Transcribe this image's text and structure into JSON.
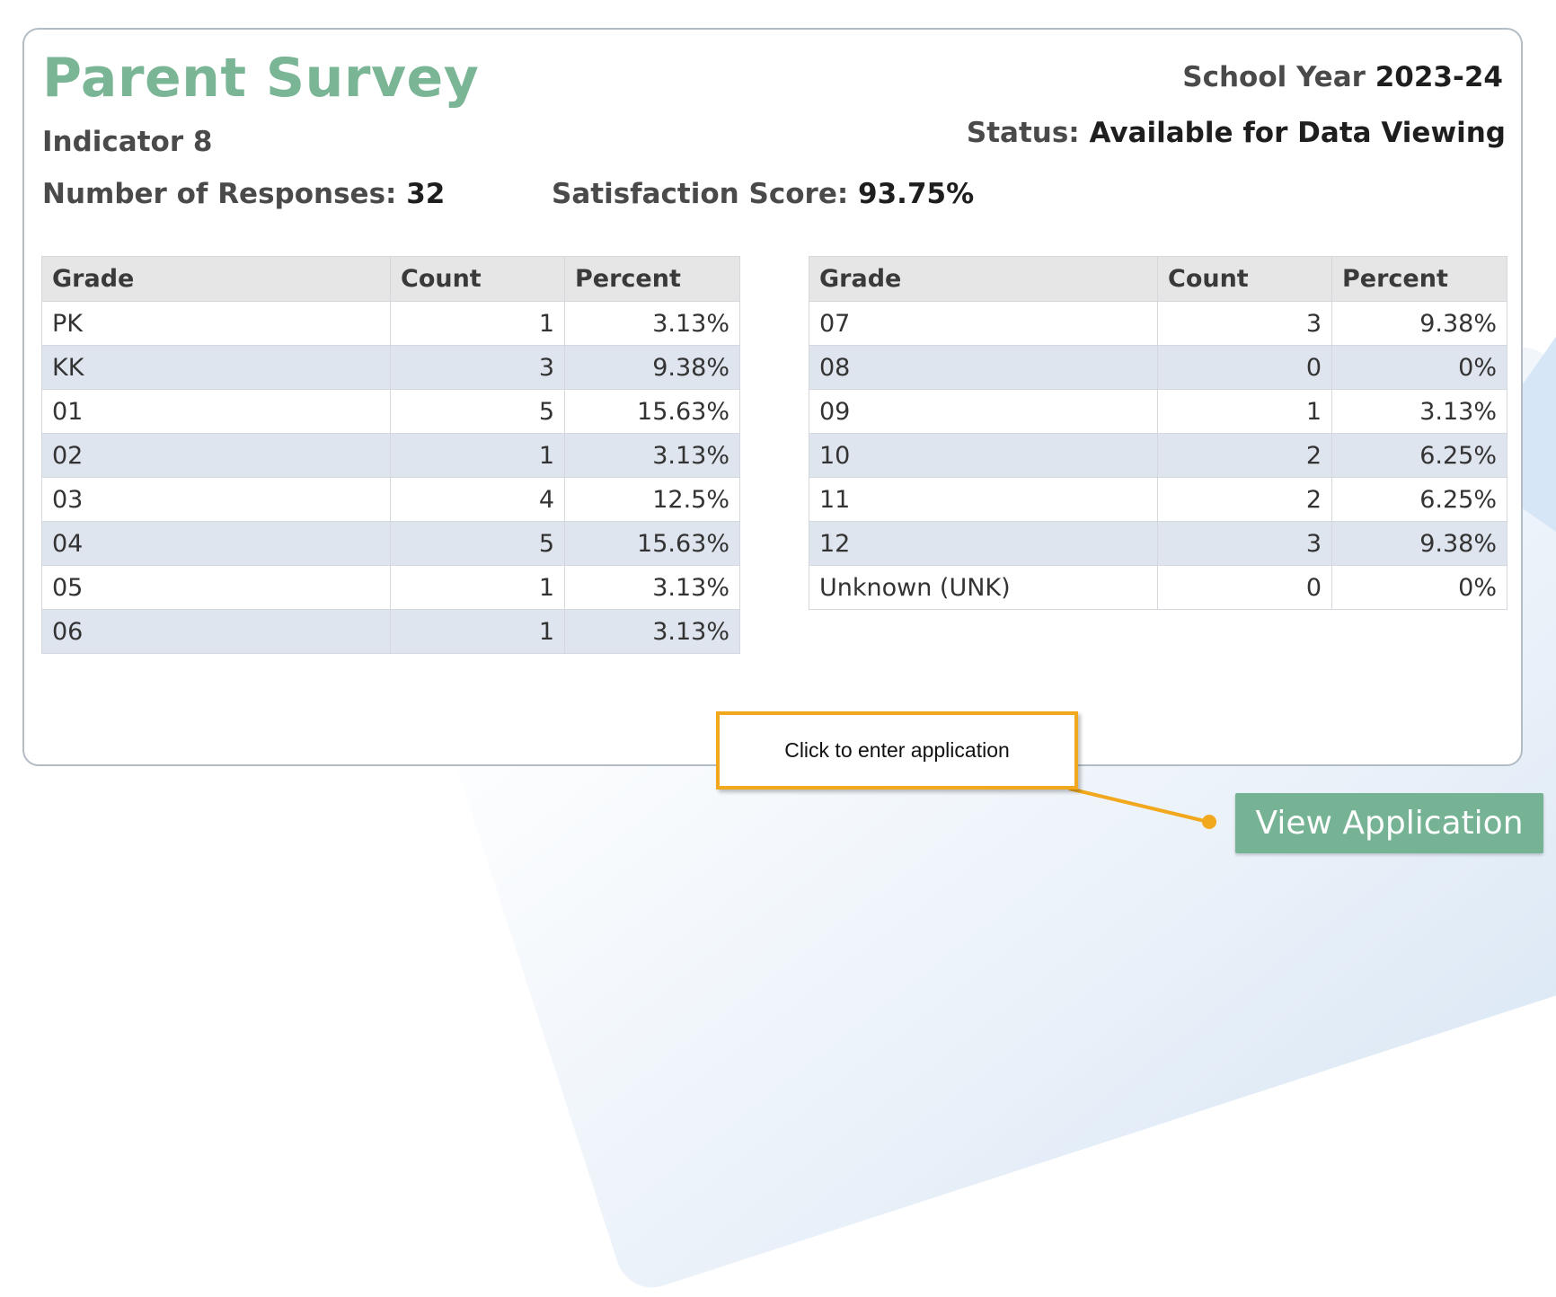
{
  "header": {
    "title": "Parent Survey",
    "indicator": "Indicator 8",
    "school_year_label": "School Year",
    "school_year_value": "2023-24",
    "status_label": "Status:",
    "status_value": "Available for Data Viewing"
  },
  "stats": {
    "responses_label": "Number of Responses:",
    "responses_value": "32",
    "score_label": "Satisfaction Score:",
    "score_value": "93.75%"
  },
  "columns": [
    "Grade",
    "Count",
    "Percent"
  ],
  "table_left": [
    {
      "grade": "PK",
      "count": "1",
      "percent": "3.13%"
    },
    {
      "grade": "KK",
      "count": "3",
      "percent": "9.38%"
    },
    {
      "grade": "01",
      "count": "5",
      "percent": "15.63%"
    },
    {
      "grade": "02",
      "count": "1",
      "percent": "3.13%"
    },
    {
      "grade": "03",
      "count": "4",
      "percent": "12.5%"
    },
    {
      "grade": "04",
      "count": "5",
      "percent": "15.63%"
    },
    {
      "grade": "05",
      "count": "1",
      "percent": "3.13%"
    },
    {
      "grade": "06",
      "count": "1",
      "percent": "3.13%"
    }
  ],
  "table_right": [
    {
      "grade": "07",
      "count": "3",
      "percent": "9.38%"
    },
    {
      "grade": "08",
      "count": "0",
      "percent": "0%"
    },
    {
      "grade": "09",
      "count": "1",
      "percent": "3.13%"
    },
    {
      "grade": "10",
      "count": "2",
      "percent": "6.25%"
    },
    {
      "grade": "11",
      "count": "2",
      "percent": "6.25%"
    },
    {
      "grade": "12",
      "count": "3",
      "percent": "9.38%"
    },
    {
      "grade": "Unknown (UNK)",
      "count": "0",
      "percent": "0%"
    }
  ],
  "callout": {
    "text": "Click to enter application"
  },
  "actions": {
    "view_application_label": "View Application"
  },
  "colors": {
    "brand_green": "#7ab595",
    "button_green": "#76b394",
    "callout_border": "#f2a81d",
    "row_alt": "#dfe5ee",
    "header_bg": "#e6e6e6"
  }
}
